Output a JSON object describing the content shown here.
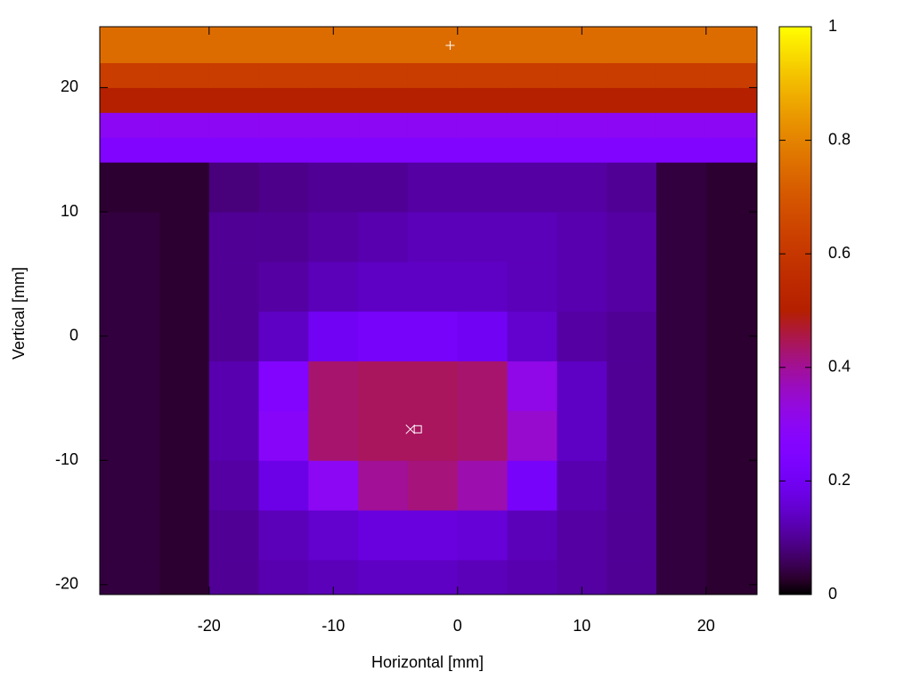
{
  "chart_data": {
    "type": "heatmap",
    "xlabel": "Horizontal [mm]",
    "ylabel": "Vertical [mm]",
    "xlim": [
      -28.8,
      24.1
    ],
    "ylim": [
      -20.8,
      24.9
    ],
    "xticks": [
      -20,
      -10,
      0,
      10,
      20
    ],
    "yticks": [
      -20,
      -10,
      0,
      10,
      20
    ],
    "clim": [
      0,
      1
    ],
    "cticks": [
      0,
      0.2,
      0.4,
      0.6,
      0.8,
      1
    ],
    "xbins": [
      -28.8,
      -24,
      -20,
      -16,
      -12,
      -8,
      -4,
      0,
      4,
      8,
      12,
      16,
      20,
      24.1
    ],
    "ybins": [
      -20.8,
      -18,
      -14,
      -10,
      -6,
      -2,
      2,
      6,
      10,
      14,
      16,
      18,
      20,
      22,
      24.9
    ],
    "z": [
      [
        0.04,
        0.03,
        0.1,
        0.12,
        0.13,
        0.14,
        0.14,
        0.13,
        0.12,
        0.11,
        0.1,
        0.04,
        0.03
      ],
      [
        0.04,
        0.03,
        0.1,
        0.13,
        0.15,
        0.17,
        0.17,
        0.16,
        0.13,
        0.11,
        0.1,
        0.04,
        0.03
      ],
      [
        0.04,
        0.03,
        0.11,
        0.18,
        0.3,
        0.4,
        0.42,
        0.38,
        0.22,
        0.12,
        0.1,
        0.04,
        0.03
      ],
      [
        0.04,
        0.03,
        0.12,
        0.28,
        0.43,
        0.44,
        0.44,
        0.43,
        0.35,
        0.14,
        0.1,
        0.04,
        0.03
      ],
      [
        0.04,
        0.03,
        0.12,
        0.26,
        0.43,
        0.44,
        0.44,
        0.43,
        0.32,
        0.14,
        0.1,
        0.04,
        0.03
      ],
      [
        0.04,
        0.03,
        0.1,
        0.14,
        0.2,
        0.22,
        0.22,
        0.2,
        0.15,
        0.11,
        0.1,
        0.04,
        0.03
      ],
      [
        0.04,
        0.03,
        0.1,
        0.11,
        0.13,
        0.14,
        0.14,
        0.14,
        0.13,
        0.12,
        0.11,
        0.04,
        0.03
      ],
      [
        0.04,
        0.03,
        0.1,
        0.1,
        0.11,
        0.12,
        0.13,
        0.13,
        0.13,
        0.12,
        0.11,
        0.04,
        0.03
      ],
      [
        0.03,
        0.03,
        0.08,
        0.09,
        0.1,
        0.1,
        0.11,
        0.11,
        0.11,
        0.11,
        0.1,
        0.04,
        0.03
      ],
      [
        0.25,
        0.25,
        0.25,
        0.25,
        0.25,
        0.25,
        0.25,
        0.25,
        0.25,
        0.25,
        0.25,
        0.25,
        0.25
      ],
      [
        0.3,
        0.3,
        0.3,
        0.3,
        0.3,
        0.3,
        0.3,
        0.3,
        0.3,
        0.3,
        0.3,
        0.3,
        0.3
      ],
      [
        0.5,
        0.5,
        0.5,
        0.5,
        0.5,
        0.5,
        0.5,
        0.5,
        0.5,
        0.5,
        0.5,
        0.5,
        0.5
      ],
      [
        0.62,
        0.62,
        0.62,
        0.62,
        0.62,
        0.62,
        0.62,
        0.62,
        0.62,
        0.62,
        0.62,
        0.62,
        0.62
      ],
      [
        0.75,
        0.75,
        0.75,
        0.75,
        0.75,
        0.75,
        0.75,
        0.75,
        0.75,
        0.75,
        0.75,
        0.75,
        0.75
      ]
    ],
    "markers": [
      {
        "shape": "plus",
        "x": -0.6,
        "y": 23.4
      },
      {
        "shape": "cross",
        "x": -3.8,
        "y": -7.5
      },
      {
        "shape": "square",
        "x": -3.2,
        "y": -7.5
      }
    ]
  }
}
